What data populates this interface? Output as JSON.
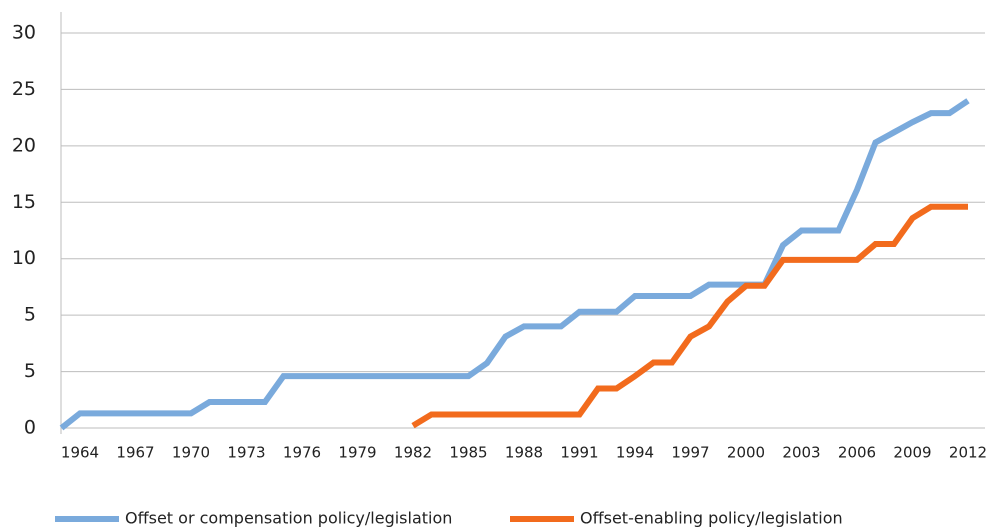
{
  "chart_data": {
    "type": "line",
    "categories": [
      null,
      "1964",
      null,
      null,
      "1967",
      null,
      null,
      "1970",
      null,
      null,
      "1973",
      null,
      null,
      "1976",
      null,
      null,
      "1979",
      null,
      null,
      "1982",
      null,
      null,
      "1985",
      null,
      null,
      "1988",
      null,
      null,
      "1991",
      null,
      null,
      "1994",
      null,
      null,
      "1997",
      null,
      null,
      "2000",
      null,
      null,
      "2003",
      null,
      null,
      "2006",
      null,
      null,
      "2009",
      null,
      null,
      "2012"
    ],
    "series": [
      {
        "name": "Offset or compensation policy/legislation",
        "color": "#7aaadc",
        "values": [
          -5,
          -3.7,
          -3.7,
          -3.7,
          -3.7,
          -3.7,
          -3.7,
          -3.7,
          -2.7,
          -2.7,
          -2.7,
          -2.7,
          -0.4,
          -0.4,
          -0.4,
          -0.4,
          -0.4,
          -0.4,
          -0.4,
          -0.4,
          -0.4,
          -0.4,
          -0.4,
          0.75,
          3.1,
          4.0,
          4.0,
          4.0,
          5.3,
          5.3,
          5.3,
          6.7,
          6.7,
          6.7,
          6.7,
          7.7,
          7.7,
          7.7,
          7.7,
          11.2,
          12.5,
          12.5,
          12.5,
          16.1,
          20.3,
          21.2,
          22.1,
          22.9,
          22.9,
          24
        ]
      },
      {
        "name": "Offset-enabling policy/legislation",
        "color": "#f26b1d",
        "values": [
          null,
          null,
          null,
          null,
          null,
          null,
          null,
          null,
          null,
          null,
          null,
          null,
          null,
          null,
          null,
          null,
          null,
          null,
          null,
          -4.8,
          -3.8,
          -3.8,
          -3.8,
          -3.8,
          -3.8,
          -3.8,
          -3.8,
          -3.8,
          -3.8,
          -1.5,
          -1.5,
          -0.4,
          0.8,
          0.8,
          3.1,
          4.0,
          6.2,
          7.6,
          7.6,
          9.9,
          9.9,
          9.9,
          9.9,
          9.9,
          11.3,
          11.3,
          13.6,
          14.6,
          14.6,
          14.6
        ]
      }
    ],
    "ylim": [
      -5,
      30
    ],
    "yticks": [
      {
        "value": -5,
        "label": "0"
      },
      {
        "value": 0,
        "label": "5"
      },
      5,
      10,
      15,
      20,
      25,
      30
    ],
    "grid": true,
    "legend": "bottom"
  }
}
